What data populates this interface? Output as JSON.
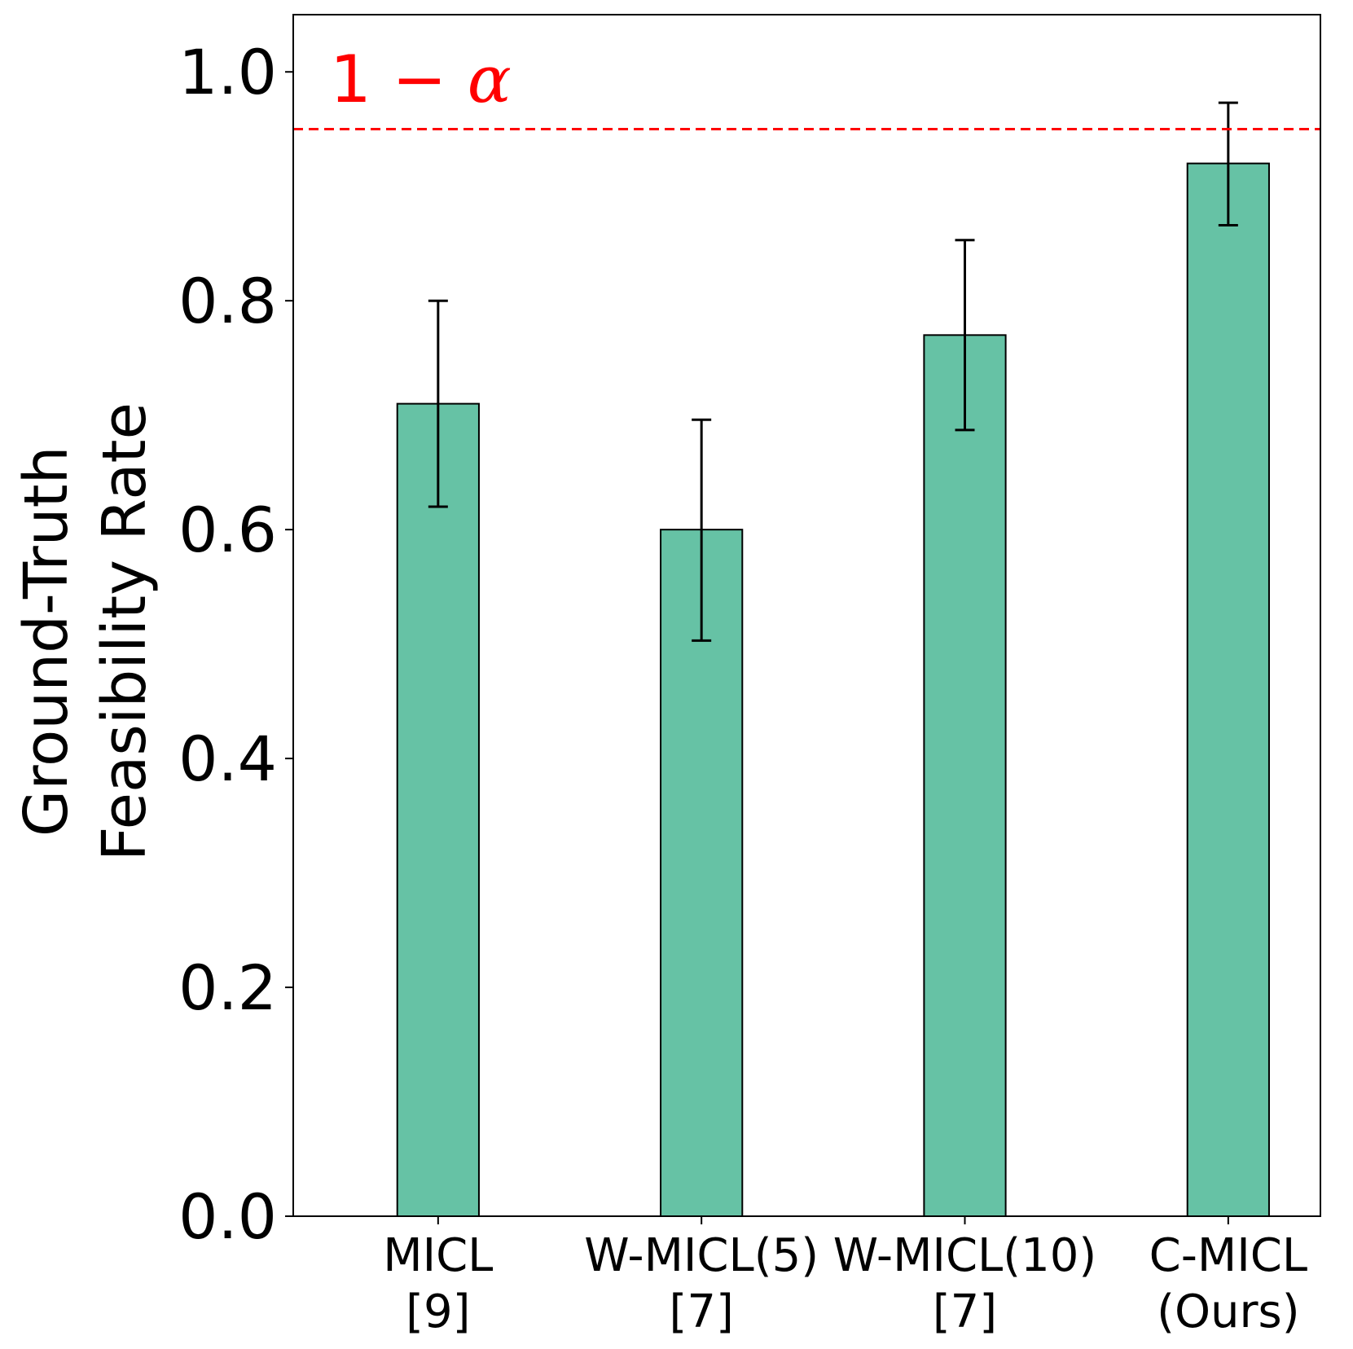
{
  "chart_data": {
    "type": "bar",
    "title": "",
    "xlabel": "",
    "ylabel_lines": [
      "Ground-Truth",
      "Feasibility Rate"
    ],
    "categories": [
      {
        "line1": "MICL",
        "line2": "[9]"
      },
      {
        "line1": "W-MICL(5)",
        "line2": "[7]"
      },
      {
        "line1": "W-MICL(10)",
        "line2": "[7]"
      },
      {
        "line1": "C-MICL",
        "line2": "(Ours)"
      }
    ],
    "values": [
      0.71,
      0.6,
      0.77,
      0.92
    ],
    "error_low": [
      0.62,
      0.503,
      0.687,
      0.866
    ],
    "error_high": [
      0.8,
      0.696,
      0.853,
      0.973
    ],
    "ylim": [
      0.0,
      1.05
    ],
    "yticks": [
      {
        "value": 0.0,
        "label": "0.0"
      },
      {
        "value": 0.2,
        "label": "0.2"
      },
      {
        "value": 0.4,
        "label": "0.4"
      },
      {
        "value": 0.6,
        "label": "0.6"
      },
      {
        "value": 0.8,
        "label": "0.8"
      },
      {
        "value": 1.0,
        "label": "1.0"
      }
    ],
    "reference_line": {
      "value": 0.95,
      "label_prefix": "1 − ",
      "label_symbol": "α",
      "color": "#ff0000"
    },
    "bar_color": "#66c2a5",
    "bar_edge_color": "#000000",
    "grid": false
  }
}
